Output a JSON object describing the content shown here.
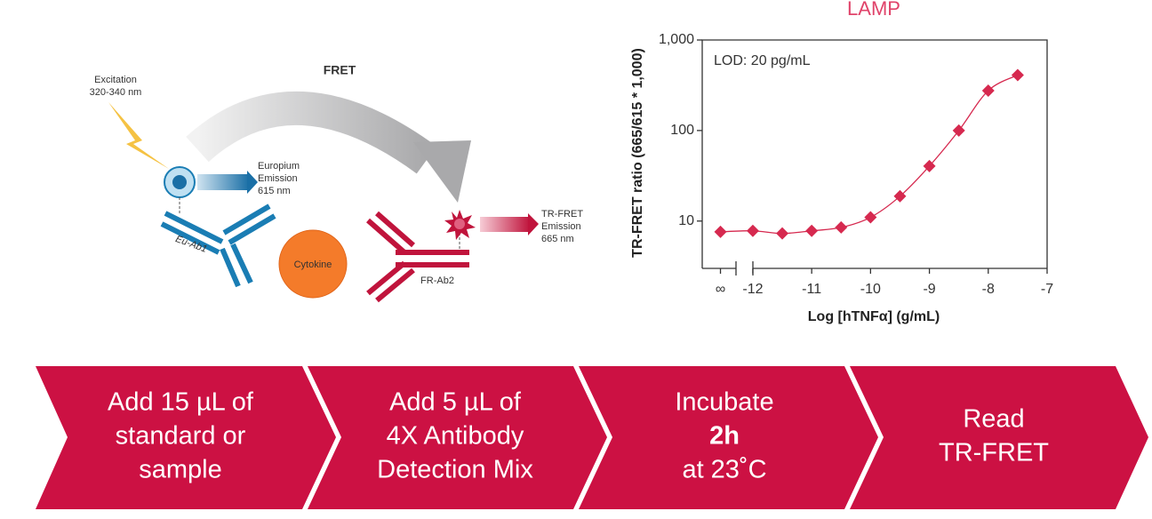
{
  "diagram": {
    "fret_label": "FRET",
    "excitation": [
      "Excitation",
      "320-340 nm"
    ],
    "europium": [
      "Europium",
      "Emission",
      "615 nm"
    ],
    "eu_ab": "Eu-Ab1",
    "cytokine": "Cytokine",
    "fr_ab": "FR-Ab2",
    "tr_fret": [
      "TR-FRET",
      "Emission",
      "665 nm"
    ]
  },
  "steps": [
    {
      "lines": [
        "Add 15 µL of",
        "standard or",
        "sample"
      ]
    },
    {
      "lines": [
        "Add 5 µL of",
        "4X Antibody",
        "Detection Mix"
      ]
    },
    {
      "lines": [
        "Incubate",
        "2h",
        "at 23˚C"
      ]
    },
    {
      "lines": [
        "Read",
        "TR-FRET"
      ]
    }
  ],
  "chart_data": {
    "type": "scatter",
    "title": "LAMP",
    "annotation": "LOD: 20 pg/mL",
    "xlabel": "Log [hTNFα] (g/mL)",
    "ylabel": "TR-FRET ratio (665/615 * 1,000)",
    "x": [
      -12.55,
      -12,
      -11.5,
      -11,
      -10.5,
      -10,
      -9.5,
      -9,
      -8.5,
      -8,
      -7.5
    ],
    "series": [
      {
        "name": "LAMP",
        "color": "#d6294f",
        "values": [
          7.6,
          7.8,
          7.3,
          7.8,
          8.5,
          11,
          18.8,
          40.5,
          100,
          276,
          410
        ]
      }
    ],
    "xlim": [
      -12.86,
      -7
    ],
    "xticks": [
      {
        "value": -12.55,
        "label": "∞"
      },
      -12,
      -11,
      -10,
      -9,
      -8,
      -7
    ],
    "ylim": [
      3,
      1000
    ],
    "yticks": [
      {
        "value": 1000,
        "label": "1,000"
      },
      100,
      10
    ],
    "ylog": true
  }
}
